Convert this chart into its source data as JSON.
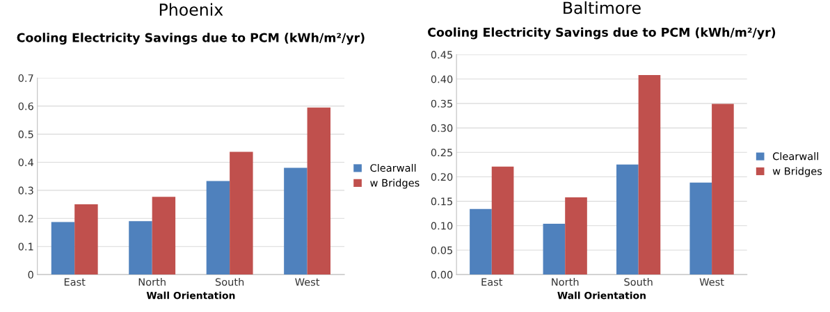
{
  "chart_data": [
    {
      "type": "bar",
      "title": "Phoenix",
      "subtitle": "Cooling Electricity Savings due to PCM (kWh/m²/yr)",
      "xlabel": "Wall Orientation",
      "categories": [
        "East",
        "North",
        "South",
        "West"
      ],
      "series": [
        {
          "name": "Clearwall",
          "color": "#4f81bd",
          "values": [
            0.187,
            0.19,
            0.333,
            0.38
          ]
        },
        {
          "name": "w Bridges",
          "color": "#c0504d",
          "values": [
            0.25,
            0.277,
            0.437,
            0.595
          ]
        }
      ],
      "ylim": [
        0,
        0.7
      ],
      "yticks": [
        0,
        0.1,
        0.2,
        0.3,
        0.4,
        0.5,
        0.6,
        0.7
      ],
      "grid": "y",
      "legend": "right"
    },
    {
      "type": "bar",
      "title": "Baltimore",
      "subtitle": "Cooling Electricity Savings due to PCM (kWh/m²/yr)",
      "xlabel": "Wall Orientation",
      "categories": [
        "East",
        "North",
        "South",
        "West"
      ],
      "series": [
        {
          "name": "Clearwall",
          "color": "#4f81bd",
          "values": [
            0.134,
            0.104,
            0.225,
            0.188
          ]
        },
        {
          "name": "w Bridges",
          "color": "#c0504d",
          "values": [
            0.221,
            0.158,
            0.408,
            0.349
          ]
        }
      ],
      "ylim": [
        0,
        0.45
      ],
      "yticks": [
        {
          "value": 0,
          "label": "0.00"
        },
        {
          "value": 0.05,
          "label": "0.05"
        },
        {
          "value": 0.1,
          "label": "0.10"
        },
        {
          "value": 0.15,
          "label": "0.15"
        },
        {
          "value": 0.2,
          "label": "0.20"
        },
        {
          "value": 0.25,
          "label": "0.25"
        },
        {
          "value": 0.3,
          "label": "0.30"
        },
        {
          "value": 0.35,
          "label": "0.35"
        },
        {
          "value": 0.4,
          "label": "0.40"
        },
        {
          "value": 0.45,
          "label": "0.45"
        }
      ],
      "grid": "y",
      "legend": "right"
    }
  ]
}
